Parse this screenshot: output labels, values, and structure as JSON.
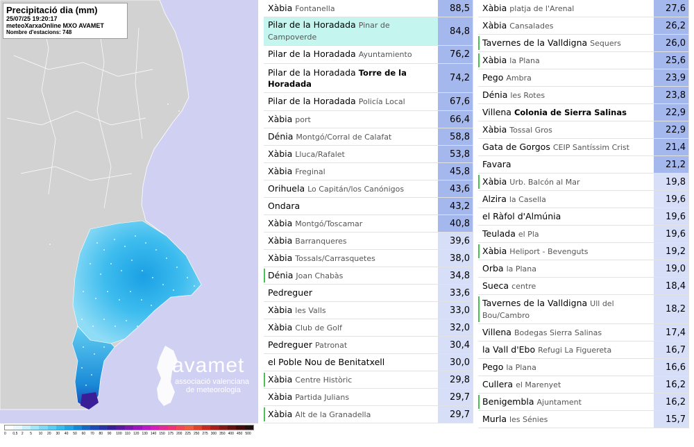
{
  "map": {
    "title": "Precipitació dia (mm)",
    "datetime": "25/07/25 19:20:17",
    "source": "meteoXarxaOnline MXO AVAMET",
    "stations_count": "Nombre d'estacions: 748",
    "logo_word": "avamet",
    "logo_line1": "associació valenciana",
    "logo_line2": "de meteorologia",
    "legend": {
      "labels": [
        "0",
        "0,5",
        "2",
        "5",
        "10",
        "20",
        "30",
        "40",
        "50",
        "60",
        "70",
        "80",
        "90",
        "100",
        "110",
        "120",
        "130",
        "140",
        "150",
        "175",
        "200",
        "225",
        "250",
        "275",
        "300",
        "350",
        "400",
        "450",
        "500"
      ],
      "colors": [
        "#ffffff",
        "#e8f8fe",
        "#c8f0fc",
        "#a2e6fa",
        "#7cdaf6",
        "#58ccf2",
        "#36bcee",
        "#1ea6e6",
        "#1288d8",
        "#1468c8",
        "#1c4cb8",
        "#2834a8",
        "#3a1e98",
        "#5a1aa0",
        "#7a18b0",
        "#9a16c0",
        "#ba18c8",
        "#d41eb8",
        "#e42896",
        "#ee3474",
        "#f44656",
        "#f05a3e",
        "#e2402c",
        "#c82a22",
        "#a8201c",
        "#861814",
        "#641210",
        "#420c0a",
        "#201010"
      ]
    }
  },
  "colors": {
    "value_bg": "#a4b8ee",
    "value_bg_light": "#d6def8",
    "highlight": "#c4f5ee",
    "accent": "#4cbf52"
  },
  "stations_left": [
    {
      "name": "Xàbia",
      "loc": "Fontanella",
      "val": "88,5"
    },
    {
      "name": "Pilar de la Horadada",
      "loc": "Pinar de Campoverde",
      "val": "84,8",
      "highlight": true
    },
    {
      "name": "Pilar de la Horadada",
      "loc": "Ayuntamiento",
      "val": "76,2"
    },
    {
      "name": "Pilar de la Horadada",
      "loc": "Torre de la Horadada",
      "val": "74,2",
      "bold": true
    },
    {
      "name": "Pilar de la Horadada",
      "loc": "Policía Local",
      "val": "67,6"
    },
    {
      "name": "Xàbia",
      "loc": "port",
      "val": "66,4"
    },
    {
      "name": "Dénia",
      "loc": "Montgó/Corral de Calafat",
      "val": "58,8"
    },
    {
      "name": "Xàbia",
      "loc": "Lluca/Rafalet",
      "val": "53,8"
    },
    {
      "name": "Xàbia",
      "loc": "Freginal",
      "val": "45,8"
    },
    {
      "name": "Orihuela",
      "loc": "Lo Capitán/los Canónigos",
      "val": "43,6"
    },
    {
      "name": "Ondara",
      "loc": "",
      "val": "43,2"
    },
    {
      "name": "Xàbia",
      "loc": "Montgó/Toscamar",
      "val": "40,8"
    },
    {
      "name": "Xàbia",
      "loc": "Barranqueres",
      "val": "39,6"
    },
    {
      "name": "Xàbia",
      "loc": "Tossals/Carrasquetes",
      "val": "38,0"
    },
    {
      "name": "Dénia",
      "loc": "Joan Chabàs",
      "val": "34,8",
      "accent": true
    },
    {
      "name": "Pedreguer",
      "loc": "",
      "val": "33,6"
    },
    {
      "name": "Xàbia",
      "loc": "les Valls",
      "val": "33,0"
    },
    {
      "name": "Xàbia",
      "loc": "Club de Golf",
      "val": "32,0"
    },
    {
      "name": "Pedreguer",
      "loc": "Patronat",
      "val": "30,4"
    },
    {
      "name": "el Poble Nou de Benitatxell",
      "loc": "",
      "val": "30,0"
    },
    {
      "name": "Xàbia",
      "loc": "Centre Històric",
      "val": "29,8",
      "accent": true
    },
    {
      "name": "Xàbia",
      "loc": "Partida Julians",
      "val": "29,7"
    },
    {
      "name": "Xàbia",
      "loc": "Alt de la Granadella",
      "val": "29,7",
      "accent": true
    }
  ],
  "stations_right": [
    {
      "name": "Xàbia",
      "loc": "platja de l'Arenal",
      "val": "27,6"
    },
    {
      "name": "Xàbia",
      "loc": "Cansalades",
      "val": "26,2"
    },
    {
      "name": "Tavernes de la Valldigna",
      "loc": "Sequers",
      "val": "26,0",
      "accent": true
    },
    {
      "name": "Xàbia",
      "loc": "la Plana",
      "val": "25,6",
      "accent": true
    },
    {
      "name": "Pego",
      "loc": "Ambra",
      "val": "23,9"
    },
    {
      "name": "Dénia",
      "loc": "les Rotes",
      "val": "23,8"
    },
    {
      "name": "Villena",
      "loc": "Colonia de Sierra Salinas",
      "val": "22,9",
      "bold": true
    },
    {
      "name": "Xàbia",
      "loc": "Tossal Gros",
      "val": "22,9"
    },
    {
      "name": "Gata de Gorgos",
      "loc": "CEIP Santíssim Crist",
      "val": "21,4"
    },
    {
      "name": "Favara",
      "loc": "",
      "val": "21,2"
    },
    {
      "name": "Xàbia",
      "loc": "Urb. Balcón al Mar",
      "val": "19,8",
      "accent": true
    },
    {
      "name": "Alzira",
      "loc": "la Casella",
      "val": "19,6"
    },
    {
      "name": "el Ràfol d'Almúnia",
      "loc": "",
      "val": "19,6"
    },
    {
      "name": "Teulada",
      "loc": "el Pla",
      "val": "19,6"
    },
    {
      "name": "Xàbia",
      "loc": "Heliport - Bevenguts",
      "val": "19,2",
      "accent": true
    },
    {
      "name": "Orba",
      "loc": "la Plana",
      "val": "19,0"
    },
    {
      "name": "Sueca",
      "loc": "centre",
      "val": "18,4"
    },
    {
      "name": "Tavernes de la Valldigna",
      "loc": "Ull del Bou/Cambro",
      "val": "18,2",
      "accent": true
    },
    {
      "name": "Villena",
      "loc": "Bodegas Sierra Salinas",
      "val": "17,4"
    },
    {
      "name": "la Vall d'Ebo",
      "loc": "Refugi La Figuereta",
      "val": "16,7"
    },
    {
      "name": "Pego",
      "loc": "la Plana",
      "val": "16,6"
    },
    {
      "name": "Cullera",
      "loc": "el Marenyet",
      "val": "16,2"
    },
    {
      "name": "Benigembla",
      "loc": "Ajuntament",
      "val": "16,2",
      "accent": true
    },
    {
      "name": "Murla",
      "loc": "les Sénies",
      "val": "15,7"
    }
  ]
}
